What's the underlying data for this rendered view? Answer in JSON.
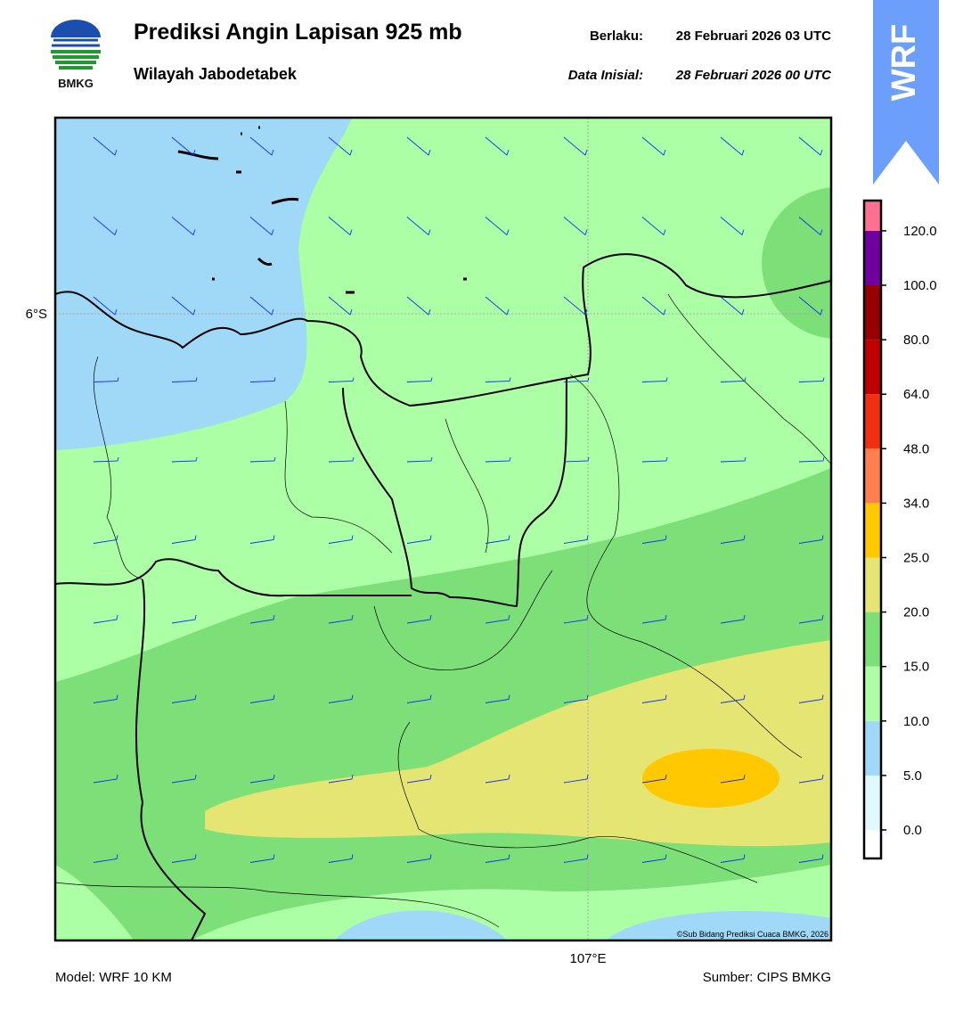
{
  "logo": {
    "label": "BMKG"
  },
  "header": {
    "title": "Prediksi Angin Lapisan 925 mb",
    "subtitle": "Wilayah Jabodetabek",
    "valid_label": "Berlaku:",
    "valid_time": "28 Februari 2026 03 UTC",
    "init_label": "Data Inisial:",
    "init_time": "28 Februari 2026 00 UTC"
  },
  "badge": {
    "label": "WRF"
  },
  "map": {
    "lat_label": "6°S",
    "lon_label": "107°E",
    "copyright": "©Sub Bidang Prediksi Cuaca BMKG, 2026"
  },
  "colorbar": {
    "labels": [
      "0.0",
      "5.0",
      "10.0",
      "15.0",
      "20.0",
      "25.0",
      "34.0",
      "48.0",
      "64.0",
      "80.0",
      "100.0",
      "120.0"
    ],
    "colors": [
      "#ffffff",
      "#e0f8ff",
      "#a0d8f8",
      "#acffa4",
      "#7ddf78",
      "#e5e573",
      "#ffc800",
      "#ff7f4f",
      "#f03010",
      "#c00000",
      "#960000",
      "#7000a0",
      "#ff6f8f"
    ]
  },
  "footer": {
    "model": "Model: WRF 10 KM",
    "source": "Sumber: CIPS BMKG"
  }
}
